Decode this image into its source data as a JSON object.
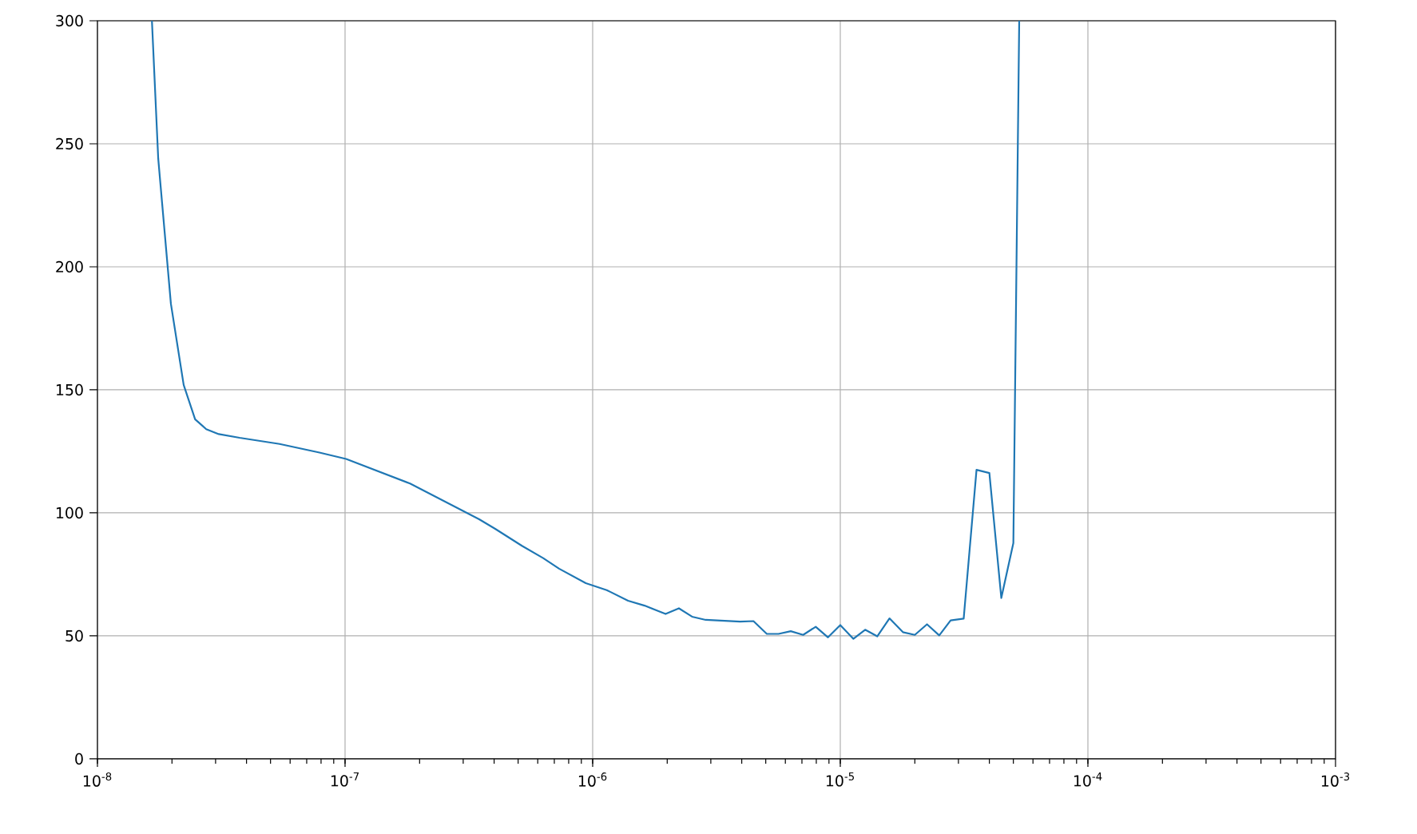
{
  "chart_data": {
    "type": "line",
    "log": "x",
    "grid": true,
    "marker": "none",
    "line_style": "solid",
    "xlim": [
      1e-08,
      0.001
    ],
    "ylim": [
      0,
      300
    ],
    "xticks": [
      {
        "value": 1e-08,
        "label": "10$^{-8}$"
      },
      {
        "value": 1e-07,
        "label": "10$^{-7}$"
      },
      {
        "value": 1e-06,
        "label": "10$^{-6}$"
      },
      {
        "value": 1e-05,
        "label": "10$^{-5}$"
      },
      {
        "value": 0.0001,
        "label": "10$^{-4}$"
      },
      {
        "value": 0.001,
        "label": "10$^{-3}$"
      }
    ],
    "yticks": [
      0,
      50,
      100,
      150,
      200,
      250,
      300
    ],
    "series": [
      {
        "color": "#1f77b4",
        "x": [
          1.66e-08,
          1.76e-08,
          1.98e-08,
          2.23e-08,
          2.48e-08,
          2.75e-08,
          3.09e-08,
          3.75e-08,
          5.44e-08,
          7.88e-08,
          1.01e-07,
          1.83e-07,
          3.48e-07,
          4.04e-07,
          5.18e-07,
          6.31e-07,
          7.32e-07,
          9.38e-07,
          1.14e-06,
          1.39e-06,
          1.62e-06,
          1.97e-06,
          2.23e-06,
          2.52e-06,
          2.86e-06,
          3.94e-06,
          4.46e-06,
          5.05e-06,
          5.63e-06,
          6.31e-06,
          7.08e-06,
          7.96e-06,
          8.92e-06,
          1e-05,
          1.13e-05,
          1.26e-05,
          1.41e-05,
          1.58e-05,
          1.79e-05,
          2e-05,
          2.24e-05,
          2.51e-05,
          2.79e-05,
          3.15e-05,
          3.55e-05,
          4e-05,
          4.47e-05,
          5e-05,
          5.28e-05
        ],
        "values": [
          300,
          244,
          185,
          152,
          138,
          134,
          132,
          130.5,
          128,
          124.5,
          121.9,
          111.9,
          97.4,
          93.5,
          86.6,
          81.6,
          77.3,
          71.4,
          68.6,
          64.3,
          62.3,
          58.9,
          61.2,
          57.8,
          56.5,
          55.8,
          56,
          50.8,
          50.8,
          51.9,
          50.4,
          53.7,
          49.4,
          54.4,
          48.8,
          52.5,
          49.8,
          57.1,
          51.5,
          50.4,
          54.7,
          50.2,
          56.3,
          57,
          117.5,
          116.2,
          65.4,
          87.7,
          300
        ]
      }
    ]
  }
}
